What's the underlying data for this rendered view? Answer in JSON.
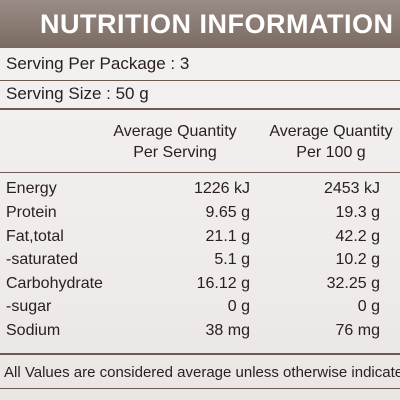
{
  "label": {
    "title": "NUTRITION INFORMATION",
    "serving_per_package": "Serving Per Package : 3",
    "serving_size": "Serving Size : 50 g",
    "column_headers": {
      "per_serving_line1": "Average Quantity",
      "per_serving_line2": "Per Serving",
      "per_100g_line1": "Average Quantity",
      "per_100g_line2": "Per 100 g"
    },
    "rows": [
      {
        "nutrient": "Energy",
        "per_serving": "1226 kJ",
        "per_100g": "2453 kJ"
      },
      {
        "nutrient": "Protein",
        "per_serving": "9.65 g",
        "per_100g": "19.3 g"
      },
      {
        "nutrient": "Fat,total",
        "per_serving": "21.1 g",
        "per_100g": "42.2 g"
      },
      {
        "nutrient": "-saturated",
        "per_serving": "5.1 g",
        "per_100g": "10.2 g"
      },
      {
        "nutrient": "Carbohydrate",
        "per_serving": "16.12 g",
        "per_100g": "32.25 g"
      },
      {
        "nutrient": "-sugar",
        "per_serving": "0 g",
        "per_100g": "0 g"
      },
      {
        "nutrient": "Sodium",
        "per_serving": "38 mg",
        "per_100g": "76 mg"
      }
    ],
    "footer": "All Values are considered average unless otherwise indicate"
  },
  "colors": {
    "title_background": "#7a6a62",
    "rule": "#6d5a52",
    "text": "#2a2020"
  }
}
